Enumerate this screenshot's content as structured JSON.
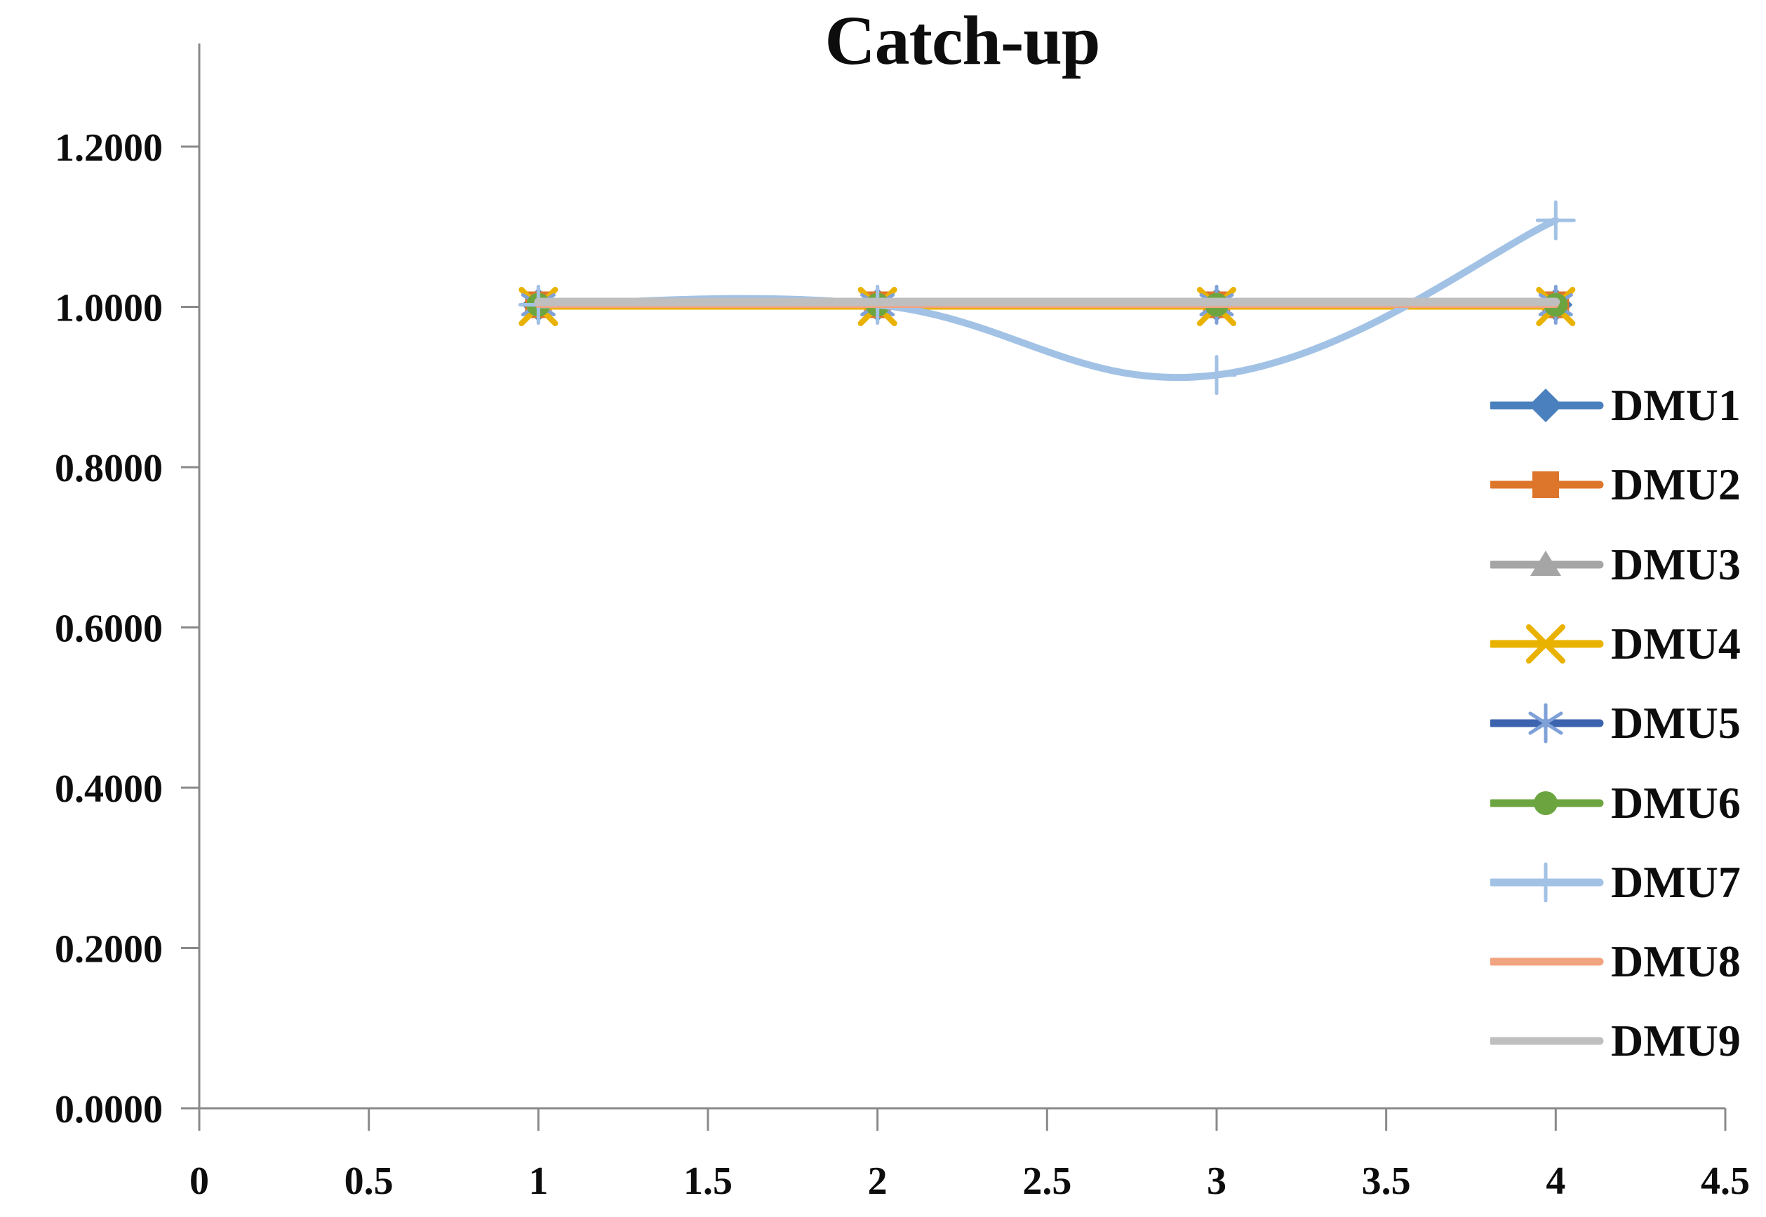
{
  "title": "Catch-up",
  "colors": {
    "axis": "#8a8a8a",
    "text": "#0d0d0d",
    "background": "#ffffff"
  },
  "chart_data": {
    "type": "line",
    "title": "Catch-up",
    "xlabel": "",
    "ylabel": "",
    "x": [
      1,
      2,
      3,
      4
    ],
    "series": [
      {
        "name": "DMU1",
        "color": "#4a80bd",
        "marker": "diamond",
        "smooth": false,
        "values": [
          1.0,
          1.0,
          1.0,
          1.0
        ]
      },
      {
        "name": "DMU2",
        "color": "#dd762b",
        "marker": "square",
        "smooth": false,
        "values": [
          1.0,
          1.0,
          1.0,
          1.0
        ]
      },
      {
        "name": "DMU3",
        "color": "#a5a5a5",
        "marker": "triangle",
        "smooth": false,
        "values": [
          1.0,
          1.0,
          1.0,
          1.0
        ]
      },
      {
        "name": "DMU4",
        "color": "#eab200",
        "marker": "xmark",
        "smooth": false,
        "values": [
          1.0,
          1.0,
          1.0,
          1.0
        ]
      },
      {
        "name": "DMU5",
        "color": "#3b63ae",
        "marker": "asterisk",
        "marker_color": "#7fa1d8",
        "smooth": false,
        "values": [
          1.0,
          1.0,
          1.0,
          1.0
        ]
      },
      {
        "name": "DMU6",
        "color": "#6ca53f",
        "marker": "circle",
        "smooth": false,
        "values": [
          1.0,
          1.0,
          1.0,
          1.0
        ]
      },
      {
        "name": "DMU7",
        "color": "#a2c2e5",
        "marker": "plus",
        "smooth": true,
        "values": [
          1.0,
          1.0,
          0.915,
          1.108
        ]
      },
      {
        "name": "DMU8",
        "color": "#f2a380",
        "marker": "none",
        "smooth": false,
        "values": [
          1.0,
          1.0,
          1.0,
          1.0
        ]
      },
      {
        "name": "DMU9",
        "color": "#bfbfbf",
        "marker": "none",
        "smooth": false,
        "values": [
          1.0,
          1.0,
          1.0,
          1.0
        ]
      }
    ],
    "x_ticks": [
      0,
      0.5,
      1,
      1.5,
      2,
      2.5,
      3,
      3.5,
      4,
      4.5
    ],
    "x_tick_labels": [
      "0",
      "0.5",
      "1",
      "1.5",
      "2",
      "2.5",
      "3",
      "3.5",
      "4",
      "4.5"
    ],
    "y_ticks": [
      0.0,
      0.2,
      0.4,
      0.6,
      0.8,
      1.0,
      1.2
    ],
    "y_tick_labels": [
      "0.0000",
      "0.2000",
      "0.4000",
      "0.6000",
      "0.8000",
      "1.0000",
      "1.2000"
    ],
    "xlim": [
      0,
      4.5
    ],
    "ylim": [
      0,
      1.3
    ],
    "grid": false,
    "legend_position": "right"
  }
}
